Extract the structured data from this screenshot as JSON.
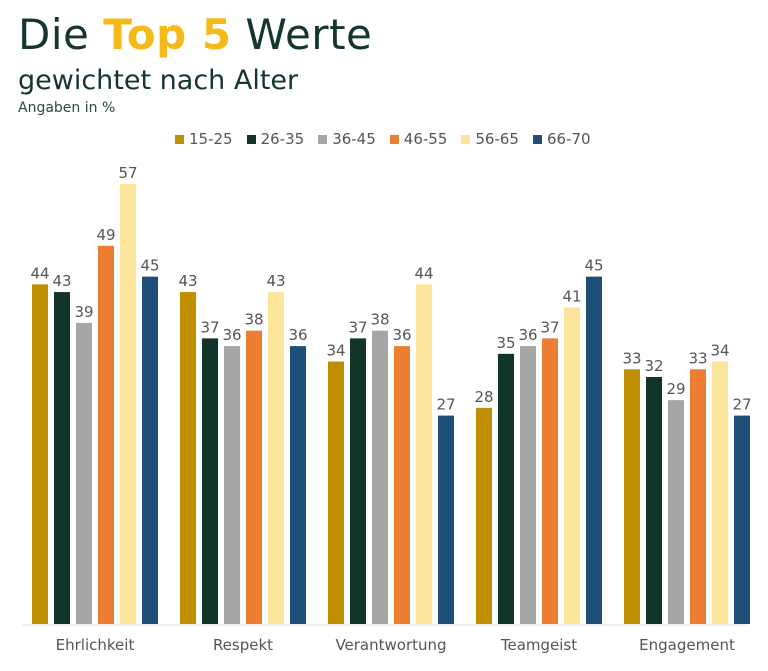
{
  "header": {
    "title_part1": "Die ",
    "title_highlight": "Top 5",
    "title_part2": " Werte",
    "subtitle": "gewichtet nach Alter",
    "note": "Angaben in %"
  },
  "chart_data": {
    "type": "bar",
    "title": "Die Top 5 Werte",
    "subtitle": "gewichtet nach Alter",
    "ylabel": "Angaben in %",
    "xlabel": "",
    "ylim": [
      0,
      57
    ],
    "grid": false,
    "legend_position": "top",
    "categories": [
      "Ehrlichkeit",
      "Respekt",
      "Verantwortung",
      "Teamgeist",
      "Engagement"
    ],
    "series": [
      {
        "name": "15-25",
        "color": "#be8f00",
        "values": [
          44,
          43,
          34,
          28,
          33
        ]
      },
      {
        "name": "26-35",
        "color": "#12352a",
        "values": [
          43,
          37,
          37,
          35,
          32
        ]
      },
      {
        "name": "36-45",
        "color": "#a5a5a5",
        "values": [
          39,
          36,
          38,
          36,
          29
        ]
      },
      {
        "name": "46-55",
        "color": "#ed7d31",
        "values": [
          49,
          38,
          36,
          37,
          33
        ]
      },
      {
        "name": "56-65",
        "color": "#fde49b",
        "values": [
          57,
          43,
          44,
          41,
          34
        ]
      },
      {
        "name": "66-70",
        "color": "#1f4e79",
        "values": [
          45,
          36,
          27,
          45,
          27
        ]
      }
    ]
  }
}
